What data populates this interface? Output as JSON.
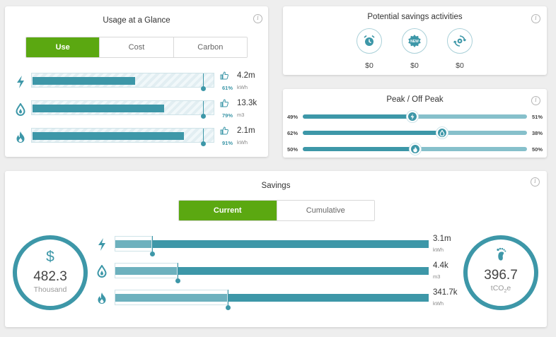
{
  "colors": {
    "accent_green": "#5ba811",
    "teal": "#3d97a8",
    "teal_light": "#86c0cb"
  },
  "usage": {
    "title": "Usage at a Glance",
    "tabs": [
      "Use",
      "Cost",
      "Carbon"
    ],
    "active_tab": "Use",
    "rows": [
      {
        "icon": "lightning-icon",
        "fill_fraction": 0.57,
        "marker_fraction": 0.94,
        "pct": "61%",
        "value": "4.2m",
        "unit": "kWh"
      },
      {
        "icon": "water-drop-icon",
        "fill_fraction": 0.73,
        "marker_fraction": 0.94,
        "pct": "79%",
        "value": "13.3k",
        "unit": "m3"
      },
      {
        "icon": "flame-icon",
        "fill_fraction": 0.84,
        "marker_fraction": 0.94,
        "pct": "91%",
        "value": "2.1m",
        "unit": "kWh"
      }
    ]
  },
  "activities": {
    "title": "Potential savings activities",
    "items": [
      {
        "icon": "alarm-clock-icon",
        "value": "$0"
      },
      {
        "icon": "new-badge-icon",
        "badge_text": "NEW",
        "value": "$0"
      },
      {
        "icon": "refresh-gear-icon",
        "value": "$0"
      }
    ]
  },
  "peak": {
    "title": "Peak / Off Peak",
    "rows": [
      {
        "icon": "lightning-icon",
        "peak": "49%",
        "off_peak": "51%",
        "fraction": 0.49
      },
      {
        "icon": "water-drop-icon",
        "peak": "62%",
        "off_peak": "38%",
        "fraction": 0.62
      },
      {
        "icon": "flame-icon",
        "peak": "50%",
        "off_peak": "50%",
        "fraction": 0.5
      }
    ]
  },
  "savings": {
    "title": "Savings",
    "tabs": [
      "Current",
      "Cumulative"
    ],
    "active_tab": "Current",
    "money": {
      "symbol": "$",
      "value": "482.3",
      "unit": "Thousand"
    },
    "carbon": {
      "icon": "footprint-icon",
      "value": "396.7",
      "unit_prefix": "tCO",
      "unit_sub": "2",
      "unit_suffix": "e"
    },
    "rows": [
      {
        "icon": "lightning-icon",
        "value": "3.1m",
        "unit": "kWh",
        "marker_fraction": 0.12
      },
      {
        "icon": "water-drop-icon",
        "value": "4.4k",
        "unit": "m3",
        "marker_fraction": 0.2
      },
      {
        "icon": "flame-icon",
        "value": "341.7k",
        "unit": "kWh",
        "marker_fraction": 0.36
      }
    ]
  }
}
